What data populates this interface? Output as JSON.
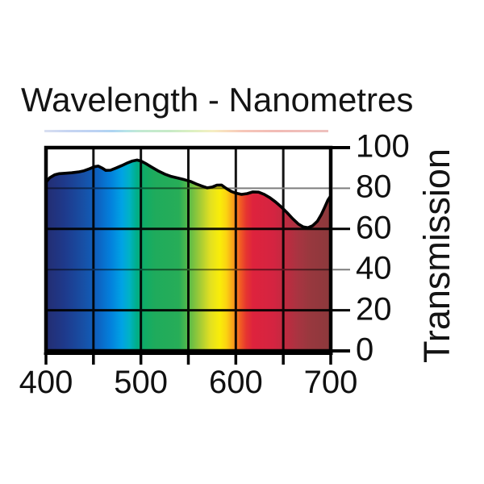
{
  "title": "Wavelength - Nanometres",
  "y_axis_label": "Transmission",
  "chart_data": {
    "type": "area",
    "title": "Wavelength - Nanometres",
    "xlabel": "Wavelength - Nanometres",
    "ylabel": "Transmission",
    "xlim": [
      400,
      700
    ],
    "ylim": [
      0,
      100
    ],
    "grid": true,
    "legend": "none",
    "x_ticks": [
      400,
      450,
      500,
      550,
      600,
      650,
      700
    ],
    "x_tick_labels": [
      {
        "value": 400,
        "text": "400"
      },
      {
        "value": 500,
        "text": "500"
      },
      {
        "value": 600,
        "text": "600"
      },
      {
        "value": 700,
        "text": "700"
      }
    ],
    "y_ticks": [
      {
        "value": 100,
        "text": "100",
        "light": false,
        "major": true
      },
      {
        "value": 80,
        "text": "80",
        "light": true,
        "major": false
      },
      {
        "value": 60,
        "text": "60",
        "light": false,
        "major": false
      },
      {
        "value": 40,
        "text": "40",
        "light": true,
        "major": false
      },
      {
        "value": 20,
        "text": "20",
        "light": false,
        "major": false
      },
      {
        "value": 0,
        "text": "0",
        "light": false,
        "major": true
      }
    ],
    "series": [
      {
        "name": "Transmission %",
        "points": [
          [
            400,
            83.0
          ],
          [
            404,
            85.2
          ],
          [
            409,
            86.6
          ],
          [
            414,
            87.2
          ],
          [
            420,
            87.4
          ],
          [
            427,
            87.6
          ],
          [
            434,
            88.0
          ],
          [
            440,
            88.6
          ],
          [
            446,
            89.6
          ],
          [
            451,
            90.6
          ],
          [
            455,
            90.9
          ],
          [
            459,
            90.0
          ],
          [
            463,
            88.8
          ],
          [
            468,
            88.9
          ],
          [
            474,
            90.0
          ],
          [
            480,
            91.2
          ],
          [
            486,
            92.5
          ],
          [
            491,
            93.4
          ],
          [
            496,
            93.9
          ],
          [
            500,
            93.4
          ],
          [
            505,
            92.2
          ],
          [
            511,
            90.5
          ],
          [
            518,
            88.6
          ],
          [
            525,
            87.0
          ],
          [
            532,
            85.8
          ],
          [
            539,
            85.0
          ],
          [
            546,
            84.2
          ],
          [
            552,
            83.4
          ],
          [
            558,
            82.2
          ],
          [
            564,
            81.1
          ],
          [
            570,
            80.2
          ],
          [
            575,
            80.6
          ],
          [
            580,
            81.5
          ],
          [
            585,
            81.6
          ],
          [
            590,
            79.9
          ],
          [
            595,
            78.5
          ],
          [
            600,
            77.6
          ],
          [
            606,
            77.0
          ],
          [
            612,
            77.4
          ],
          [
            618,
            78.2
          ],
          [
            624,
            78.1
          ],
          [
            630,
            77.0
          ],
          [
            636,
            75.3
          ],
          [
            642,
            73.2
          ],
          [
            648,
            70.8
          ],
          [
            654,
            68.0
          ],
          [
            660,
            65.0
          ],
          [
            666,
            62.4
          ],
          [
            671,
            61.0
          ],
          [
            676,
            60.6
          ],
          [
            681,
            61.6
          ],
          [
            686,
            63.8
          ],
          [
            690,
            67.0
          ],
          [
            694,
            71.0
          ],
          [
            697,
            74.2
          ],
          [
            700,
            76.3
          ]
        ]
      }
    ],
    "spectrum_gradient_stops": [
      {
        "nm": 400,
        "color": "#242d72"
      },
      {
        "nm": 420,
        "color": "#1e3a8c"
      },
      {
        "nm": 440,
        "color": "#1750a6"
      },
      {
        "nm": 455,
        "color": "#0d63c2"
      },
      {
        "nm": 468,
        "color": "#0380dc"
      },
      {
        "nm": 480,
        "color": "#00a3e4"
      },
      {
        "nm": 488,
        "color": "#00b2c4"
      },
      {
        "nm": 495,
        "color": "#00af8e"
      },
      {
        "nm": 503,
        "color": "#0fac67"
      },
      {
        "nm": 515,
        "color": "#1fab5c"
      },
      {
        "nm": 540,
        "color": "#27ad58"
      },
      {
        "nm": 552,
        "color": "#62bd46"
      },
      {
        "nm": 563,
        "color": "#a7cc35"
      },
      {
        "nm": 573,
        "color": "#e2e021"
      },
      {
        "nm": 583,
        "color": "#f9ed09"
      },
      {
        "nm": 590,
        "color": "#fbd411"
      },
      {
        "nm": 597,
        "color": "#f7a01b"
      },
      {
        "nm": 604,
        "color": "#f26122"
      },
      {
        "nm": 611,
        "color": "#e63530"
      },
      {
        "nm": 618,
        "color": "#de233d"
      },
      {
        "nm": 640,
        "color": "#d42441"
      },
      {
        "nm": 652,
        "color": "#c02a40"
      },
      {
        "nm": 665,
        "color": "#a93441"
      },
      {
        "nm": 678,
        "color": "#98383e"
      },
      {
        "nm": 700,
        "color": "#8c393c"
      }
    ],
    "line_color": "#000000",
    "gridline_color": "#141414",
    "light_gridline_color": "#7d7d7d",
    "border_color": "#000000",
    "text_color": "#141414"
  }
}
